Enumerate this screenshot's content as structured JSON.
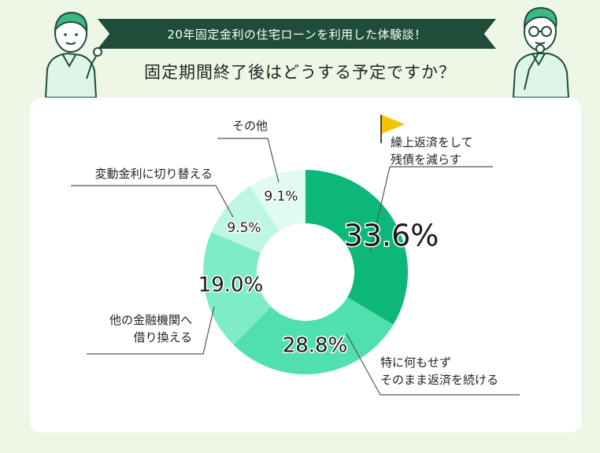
{
  "header": {
    "banner_text": "20年固定金利の住宅ローンを利用した体験談！",
    "question": "固定期間終了後はどうする予定ですか？"
  },
  "colors": {
    "banner_bg": "#1f4d3a",
    "page_bg": "#eef7e6",
    "card_bg": "#ffffff",
    "flag": "#f5c400",
    "leader_line": "#555555"
  },
  "chart_data": {
    "type": "pie",
    "style": "donut",
    "start": "top, clockwise",
    "slices": [
      {
        "label_lines": [
          "繰上返済をして",
          "残債を減らす"
        ],
        "value": 33.6,
        "value_text": "33.6%",
        "color": "#0db77a"
      },
      {
        "label_lines": [
          "特に何もせず",
          "そのまま返済を続ける"
        ],
        "value": 28.8,
        "value_text": "28.8%",
        "color": "#4fe0ae"
      },
      {
        "label_lines": [
          "他の金融機関へ",
          "借り換える"
        ],
        "value": 19.0,
        "value_text": "19.0%",
        "color": "#7eecc6"
      },
      {
        "label_lines": [
          "変動金利に切り替える"
        ],
        "value": 9.5,
        "value_text": "9.5%",
        "color": "#bff6e2"
      },
      {
        "label_lines": [
          "その他"
        ],
        "value": 9.1,
        "value_text": "9.1%",
        "color": "#e2fbf1"
      }
    ]
  }
}
